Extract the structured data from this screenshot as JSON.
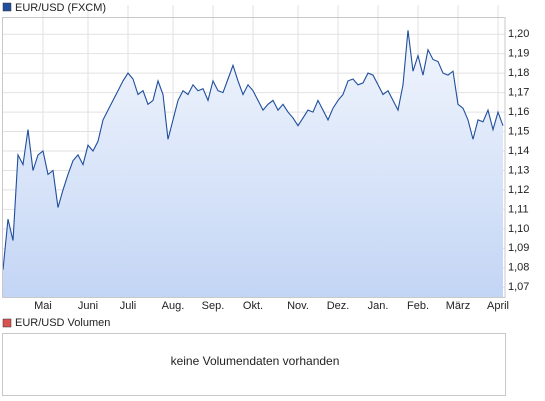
{
  "chart_data": {
    "type": "line",
    "categories": [
      null,
      null,
      null,
      null,
      null,
      null,
      null,
      null,
      "Mai",
      null,
      null,
      null,
      null,
      null,
      null,
      null,
      null,
      "Juni",
      null,
      null,
      null,
      null,
      null,
      null,
      null,
      "Juli",
      null,
      null,
      null,
      null,
      null,
      null,
      null,
      null,
      "Aug.",
      null,
      null,
      null,
      null,
      null,
      null,
      null,
      "Sep.",
      null,
      null,
      null,
      null,
      null,
      null,
      null,
      "Okt.",
      null,
      null,
      null,
      null,
      null,
      null,
      null,
      null,
      "Nov.",
      null,
      null,
      null,
      null,
      null,
      null,
      null,
      "Dez.",
      null,
      null,
      null,
      null,
      null,
      null,
      null,
      "Jan.",
      null,
      null,
      null,
      null,
      null,
      null,
      null,
      "Feb.",
      null,
      null,
      null,
      null,
      null,
      null,
      null,
      "März",
      null,
      null,
      null,
      null,
      null,
      null,
      null,
      "April",
      null
    ],
    "series": [
      {
        "name": "EUR/USD (FXCM)",
        "color": "#1f4e9c",
        "values": [
          1.079,
          1.105,
          1.094,
          1.138,
          1.133,
          1.151,
          1.13,
          1.138,
          1.14,
          1.128,
          1.13,
          1.111,
          1.12,
          1.128,
          1.135,
          1.138,
          1.133,
          1.143,
          1.14,
          1.145,
          1.156,
          1.161,
          1.166,
          1.171,
          1.176,
          1.18,
          1.177,
          1.169,
          1.171,
          1.164,
          1.166,
          1.176,
          1.169,
          1.146,
          1.156,
          1.166,
          1.171,
          1.169,
          1.174,
          1.171,
          1.172,
          1.166,
          1.176,
          1.171,
          1.17,
          1.177,
          1.184,
          1.176,
          1.169,
          1.174,
          1.171,
          1.166,
          1.161,
          1.164,
          1.166,
          1.161,
          1.164,
          1.16,
          1.157,
          1.153,
          1.157,
          1.161,
          1.16,
          1.166,
          1.161,
          1.156,
          1.162,
          1.166,
          1.169,
          1.176,
          1.177,
          1.174,
          1.175,
          1.18,
          1.179,
          1.174,
          1.169,
          1.171,
          1.166,
          1.161,
          1.174,
          1.202,
          1.181,
          1.189,
          1.179,
          1.192,
          1.187,
          1.186,
          1.18,
          1.179,
          1.181,
          1.164,
          1.162,
          1.156,
          1.146,
          1.156,
          1.155,
          1.161,
          1.151,
          1.16,
          1.153
        ]
      }
    ],
    "ylim": [
      1.065,
      1.215
    ],
    "yticks": [
      {
        "value": 1.07,
        "label": "1,07"
      },
      {
        "value": 1.08,
        "label": "1,08"
      },
      {
        "value": 1.09,
        "label": "1,09"
      },
      {
        "value": 1.1,
        "label": "1,10"
      },
      {
        "value": 1.11,
        "label": "1,11"
      },
      {
        "value": 1.12,
        "label": "1,12"
      },
      {
        "value": 1.13,
        "label": "1,13"
      },
      {
        "value": 1.14,
        "label": "1,14"
      },
      {
        "value": 1.15,
        "label": "1,15"
      },
      {
        "value": 1.16,
        "label": "1,16"
      },
      {
        "value": 1.17,
        "label": "1,17"
      },
      {
        "value": 1.18,
        "label": "1,18"
      },
      {
        "value": 1.19,
        "label": "1,19"
      },
      {
        "value": 1.2,
        "label": "1,20"
      }
    ],
    "grid": true,
    "y_axis_side": "right"
  },
  "volume_panel": {
    "legend": "EUR/USD Volumen",
    "color": "#d9534f",
    "message": "keine Volumendaten vorhanden"
  }
}
